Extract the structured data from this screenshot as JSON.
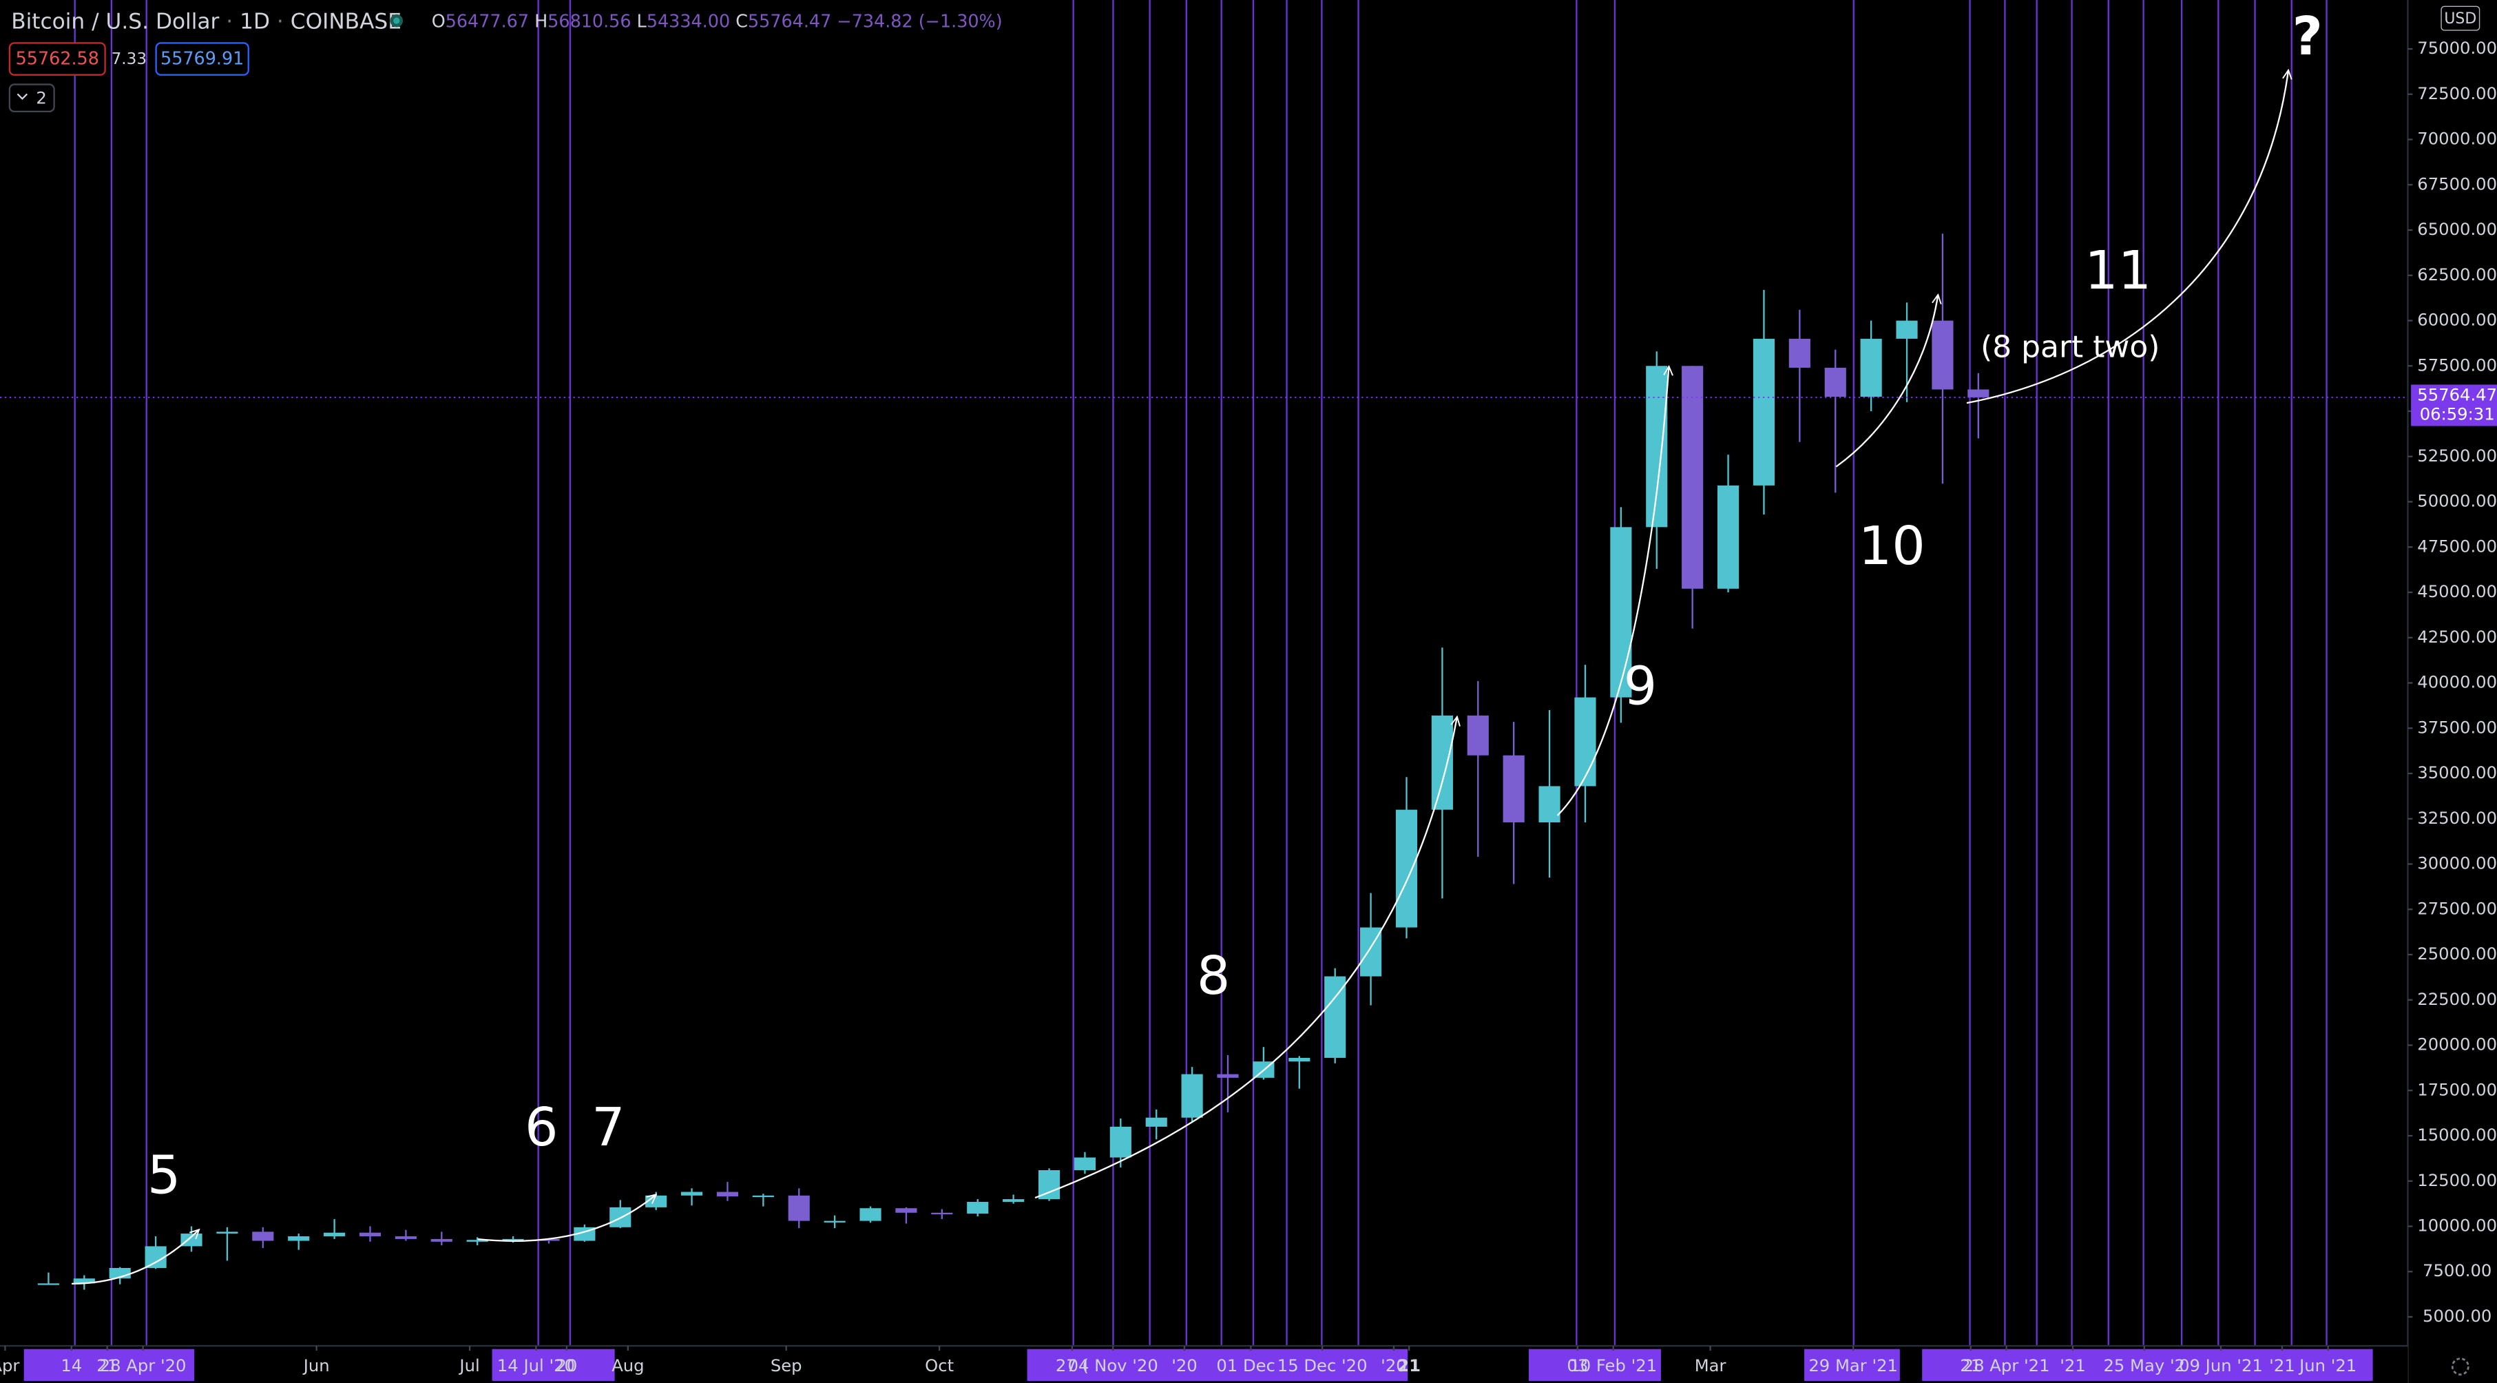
{
  "chart_data": {
    "type": "candlestick",
    "title": "Bitcoin / U.S. Dollar",
    "interval": "1D",
    "exchange": "COINBASE",
    "ohlc_legend": [
      {
        "key": "O",
        "value": "56477.67"
      },
      {
        "key": "H",
        "value": "56810.56"
      },
      {
        "key": "L",
        "value": "54334.00"
      },
      {
        "key": "C",
        "value": "55764.47"
      },
      {
        "key": "",
        "value": "−734.82 (−1.30%)"
      }
    ],
    "toolbar": {
      "sell": "55762.58",
      "spread": "7.33",
      "buy": "55769.91",
      "indicators": "2"
    },
    "currency": "USD",
    "last_price": 55764.47,
    "countdown": "06:59:31",
    "up_color": "#4fc3d0",
    "down_color": "#7b5fd0",
    "grid": false,
    "xlim": [
      "2020-03-31",
      "2021-07-15"
    ],
    "ylim": [
      3400,
      77700
    ],
    "xticks": [
      {
        "value": "2020-04-01",
        "label": "Apr"
      },
      {
        "value": "2020-04-14",
        "label": "14"
      },
      {
        "value": "2020-04-21",
        "label": "21"
      },
      {
        "value": "2020-04-28",
        "label": "28 Apr '20"
      },
      {
        "value": "2020-06-01",
        "label": "Jun"
      },
      {
        "value": "2020-07-01",
        "label": "Jul"
      },
      {
        "value": "2020-07-14",
        "label": "14 Jul '20"
      },
      {
        "value": "2020-07-20",
        "label": "20"
      },
      {
        "value": "2020-08-01",
        "label": "Aug"
      },
      {
        "value": "2020-09-01",
        "label": "Sep"
      },
      {
        "value": "2020-10-01",
        "label": "Oct"
      },
      {
        "value": "2020-10-27",
        "label": "27 ("
      },
      {
        "value": "2020-11-04",
        "label": "04 Nov '20"
      },
      {
        "value": "2020-11-18",
        "label": "'20"
      },
      {
        "value": "2020-12-01",
        "label": "01 Dec '"
      },
      {
        "value": "2020-12-15",
        "label": "15 Dec '20"
      },
      {
        "value": "2020-12-29",
        "label": "'20"
      },
      {
        "value": "2021-01-01",
        "label": "21"
      },
      {
        "value": "2021-02-03",
        "label": "03"
      },
      {
        "value": "2021-02-10",
        "label": "10 Feb '21"
      },
      {
        "value": "2021-03-01",
        "label": "Mar"
      },
      {
        "value": "2021-03-29",
        "label": "29 Mar '21"
      },
      {
        "value": "2021-04-21",
        "label": "21"
      },
      {
        "value": "2021-04-28",
        "label": "28 Apr '21"
      },
      {
        "value": "2021-05-11",
        "label": "'21"
      },
      {
        "value": "2021-05-25",
        "label": "25 May '2"
      },
      {
        "value": "2021-06-09",
        "label": "09 Jun '21"
      },
      {
        "value": "2021-06-21",
        "label": "'21"
      },
      {
        "value": "2021-06-30",
        "label": "Jun '21"
      }
    ],
    "yticks": [
      {
        "value": 5000,
        "label": "5000.00"
      },
      {
        "value": 7500,
        "label": "7500.00"
      },
      {
        "value": 10000,
        "label": "10000.00"
      },
      {
        "value": 12500,
        "label": "12500.00"
      },
      {
        "value": 15000,
        "label": "15000.00"
      },
      {
        "value": 17500,
        "label": "17500.00"
      },
      {
        "value": 20000,
        "label": "20000.00"
      },
      {
        "value": 22500,
        "label": "22500.00"
      },
      {
        "value": 25000,
        "label": "25000.00"
      },
      {
        "value": 27500,
        "label": "27500.00"
      },
      {
        "value": 30000,
        "label": "30000.00"
      },
      {
        "value": 32500,
        "label": "32500.00"
      },
      {
        "value": 35000,
        "label": "35000.00"
      },
      {
        "value": 37500,
        "label": "37500.00"
      },
      {
        "value": 40000,
        "label": "40000.00"
      },
      {
        "value": 42500,
        "label": "42500.00"
      },
      {
        "value": 45000,
        "label": "45000.00"
      },
      {
        "value": 47500,
        "label": "47500.00"
      },
      {
        "value": 50000,
        "label": "50000.00"
      },
      {
        "value": 52500,
        "label": "52500.00"
      },
      {
        "value": 55000,
        "label": "55000.00"
      },
      {
        "value": 57500,
        "label": "57500.00"
      },
      {
        "value": 60000,
        "label": "60000.00"
      },
      {
        "value": 62500,
        "label": "62500.00"
      },
      {
        "value": 65000,
        "label": "65000.00"
      },
      {
        "value": 67500,
        "label": "67500.00"
      },
      {
        "value": 70000,
        "label": "70000.00"
      },
      {
        "value": 72500,
        "label": "72500.00"
      },
      {
        "value": 75000,
        "label": "75000.00"
      }
    ],
    "annotations": [
      "5",
      "6",
      "7",
      "8",
      "9",
      "10",
      "11",
      "(8 part two)",
      "?"
    ],
    "candles": [
      {
        "date": "2020-04-06",
        "open": 6800,
        "high": 7450,
        "low": 6780,
        "close": 6850
      },
      {
        "date": "2020-04-13",
        "open": 6850,
        "high": 7300,
        "low": 6500,
        "close": 7120
      },
      {
        "date": "2020-04-20",
        "open": 7120,
        "high": 7750,
        "low": 6800,
        "close": 7700
      },
      {
        "date": "2020-04-27",
        "open": 7700,
        "high": 9450,
        "low": 7650,
        "close": 8900
      },
      {
        "date": "2020-05-04",
        "open": 8900,
        "high": 10000,
        "low": 8600,
        "close": 9600
      },
      {
        "date": "2020-05-11",
        "open": 9600,
        "high": 9950,
        "low": 8100,
        "close": 9700
      },
      {
        "date": "2020-05-18",
        "open": 9700,
        "high": 9950,
        "low": 8800,
        "close": 9200
      },
      {
        "date": "2020-05-25",
        "open": 9200,
        "high": 9600,
        "low": 8700,
        "close": 9450
      },
      {
        "date": "2020-06-01",
        "open": 9450,
        "high": 10400,
        "low": 9300,
        "close": 9650
      },
      {
        "date": "2020-06-08",
        "open": 9650,
        "high": 10000,
        "low": 9150,
        "close": 9450
      },
      {
        "date": "2020-06-15",
        "open": 9450,
        "high": 9800,
        "low": 9200,
        "close": 9300
      },
      {
        "date": "2020-06-22",
        "open": 9300,
        "high": 9700,
        "low": 8950,
        "close": 9150
      },
      {
        "date": "2020-06-29",
        "open": 9150,
        "high": 9400,
        "low": 8950,
        "close": 9250
      },
      {
        "date": "2020-07-06",
        "open": 9250,
        "high": 9450,
        "low": 9100,
        "close": 9300
      },
      {
        "date": "2020-07-13",
        "open": 9300,
        "high": 9350,
        "low": 9050,
        "close": 9200
      },
      {
        "date": "2020-07-20",
        "open": 9200,
        "high": 10100,
        "low": 9150,
        "close": 9950
      },
      {
        "date": "2020-07-27",
        "open": 9950,
        "high": 11450,
        "low": 9900,
        "close": 11050
      },
      {
        "date": "2020-08-03",
        "open": 11050,
        "high": 11900,
        "low": 10900,
        "close": 11700
      },
      {
        "date": "2020-08-10",
        "open": 11700,
        "high": 12100,
        "low": 11150,
        "close": 11900
      },
      {
        "date": "2020-08-17",
        "open": 11900,
        "high": 12450,
        "low": 11400,
        "close": 11650
      },
      {
        "date": "2020-08-24",
        "open": 11650,
        "high": 11800,
        "low": 11100,
        "close": 11700
      },
      {
        "date": "2020-08-31",
        "open": 11700,
        "high": 12100,
        "low": 9900,
        "close": 10300
      },
      {
        "date": "2020-09-07",
        "open": 10300,
        "high": 10600,
        "low": 9900,
        "close": 10300
      },
      {
        "date": "2020-09-14",
        "open": 10300,
        "high": 11100,
        "low": 10200,
        "close": 11000
      },
      {
        "date": "2020-09-21",
        "open": 11000,
        "high": 11050,
        "low": 10150,
        "close": 10750
      },
      {
        "date": "2020-09-28",
        "open": 10750,
        "high": 10950,
        "low": 10400,
        "close": 10700
      },
      {
        "date": "2020-10-05",
        "open": 10700,
        "high": 11500,
        "low": 10550,
        "close": 11350
      },
      {
        "date": "2020-10-12",
        "open": 11350,
        "high": 11750,
        "low": 11250,
        "close": 11500
      },
      {
        "date": "2020-10-19",
        "open": 11500,
        "high": 13200,
        "low": 11400,
        "close": 13100
      },
      {
        "date": "2020-10-26",
        "open": 13100,
        "high": 14100,
        "low": 12900,
        "close": 13800
      },
      {
        "date": "2020-11-02",
        "open": 13800,
        "high": 15950,
        "low": 13250,
        "close": 15500
      },
      {
        "date": "2020-11-09",
        "open": 15500,
        "high": 16450,
        "low": 14800,
        "close": 16000
      },
      {
        "date": "2020-11-16",
        "open": 16000,
        "high": 18800,
        "low": 15800,
        "close": 18400
      },
      {
        "date": "2020-11-23",
        "open": 18400,
        "high": 19450,
        "low": 16300,
        "close": 18200
      },
      {
        "date": "2020-11-30",
        "open": 18200,
        "high": 19900,
        "low": 18100,
        "close": 19100
      },
      {
        "date": "2020-12-07",
        "open": 19100,
        "high": 19400,
        "low": 17600,
        "close": 19300
      },
      {
        "date": "2020-12-14",
        "open": 19300,
        "high": 24250,
        "low": 19000,
        "close": 23800
      },
      {
        "date": "2020-12-21",
        "open": 23800,
        "high": 28400,
        "low": 22200,
        "close": 26500
      },
      {
        "date": "2020-12-28",
        "open": 26500,
        "high": 34800,
        "low": 25900,
        "close": 33000
      },
      {
        "date": "2021-01-04",
        "open": 33000,
        "high": 41950,
        "low": 28100,
        "close": 38200
      },
      {
        "date": "2021-01-11",
        "open": 38200,
        "high": 40100,
        "low": 30400,
        "close": 36000
      },
      {
        "date": "2021-01-18",
        "open": 36000,
        "high": 37850,
        "low": 28900,
        "close": 32300
      },
      {
        "date": "2021-01-25",
        "open": 32300,
        "high": 38500,
        "low": 29250,
        "close": 34300
      },
      {
        "date": "2021-02-01",
        "open": 34300,
        "high": 41000,
        "low": 32300,
        "close": 39200
      },
      {
        "date": "2021-02-08",
        "open": 39200,
        "high": 49700,
        "low": 37800,
        "close": 48600
      },
      {
        "date": "2021-02-15",
        "open": 48600,
        "high": 58300,
        "low": 46300,
        "close": 57500
      },
      {
        "date": "2021-02-22",
        "open": 57500,
        "high": 57500,
        "low": 43000,
        "close": 45200
      },
      {
        "date": "2021-03-01",
        "open": 45200,
        "high": 52600,
        "low": 45000,
        "close": 50900
      },
      {
        "date": "2021-03-08",
        "open": 50900,
        "high": 61700,
        "low": 49300,
        "close": 59000
      },
      {
        "date": "2021-03-15",
        "open": 59000,
        "high": 60600,
        "low": 53300,
        "close": 57400
      },
      {
        "date": "2021-03-22",
        "open": 57400,
        "high": 58400,
        "low": 50500,
        "close": 55800
      },
      {
        "date": "2021-03-29",
        "open": 55800,
        "high": 60000,
        "low": 55000,
        "close": 59000
      },
      {
        "date": "2021-04-05",
        "open": 59000,
        "high": 61000,
        "low": 55500,
        "close": 60000
      },
      {
        "date": "2021-04-12",
        "open": 60000,
        "high": 64800,
        "low": 51000,
        "close": 56200
      },
      {
        "date": "2021-04-19",
        "open": 56200,
        "high": 57100,
        "low": 53500,
        "close": 55764.47
      }
    ]
  }
}
